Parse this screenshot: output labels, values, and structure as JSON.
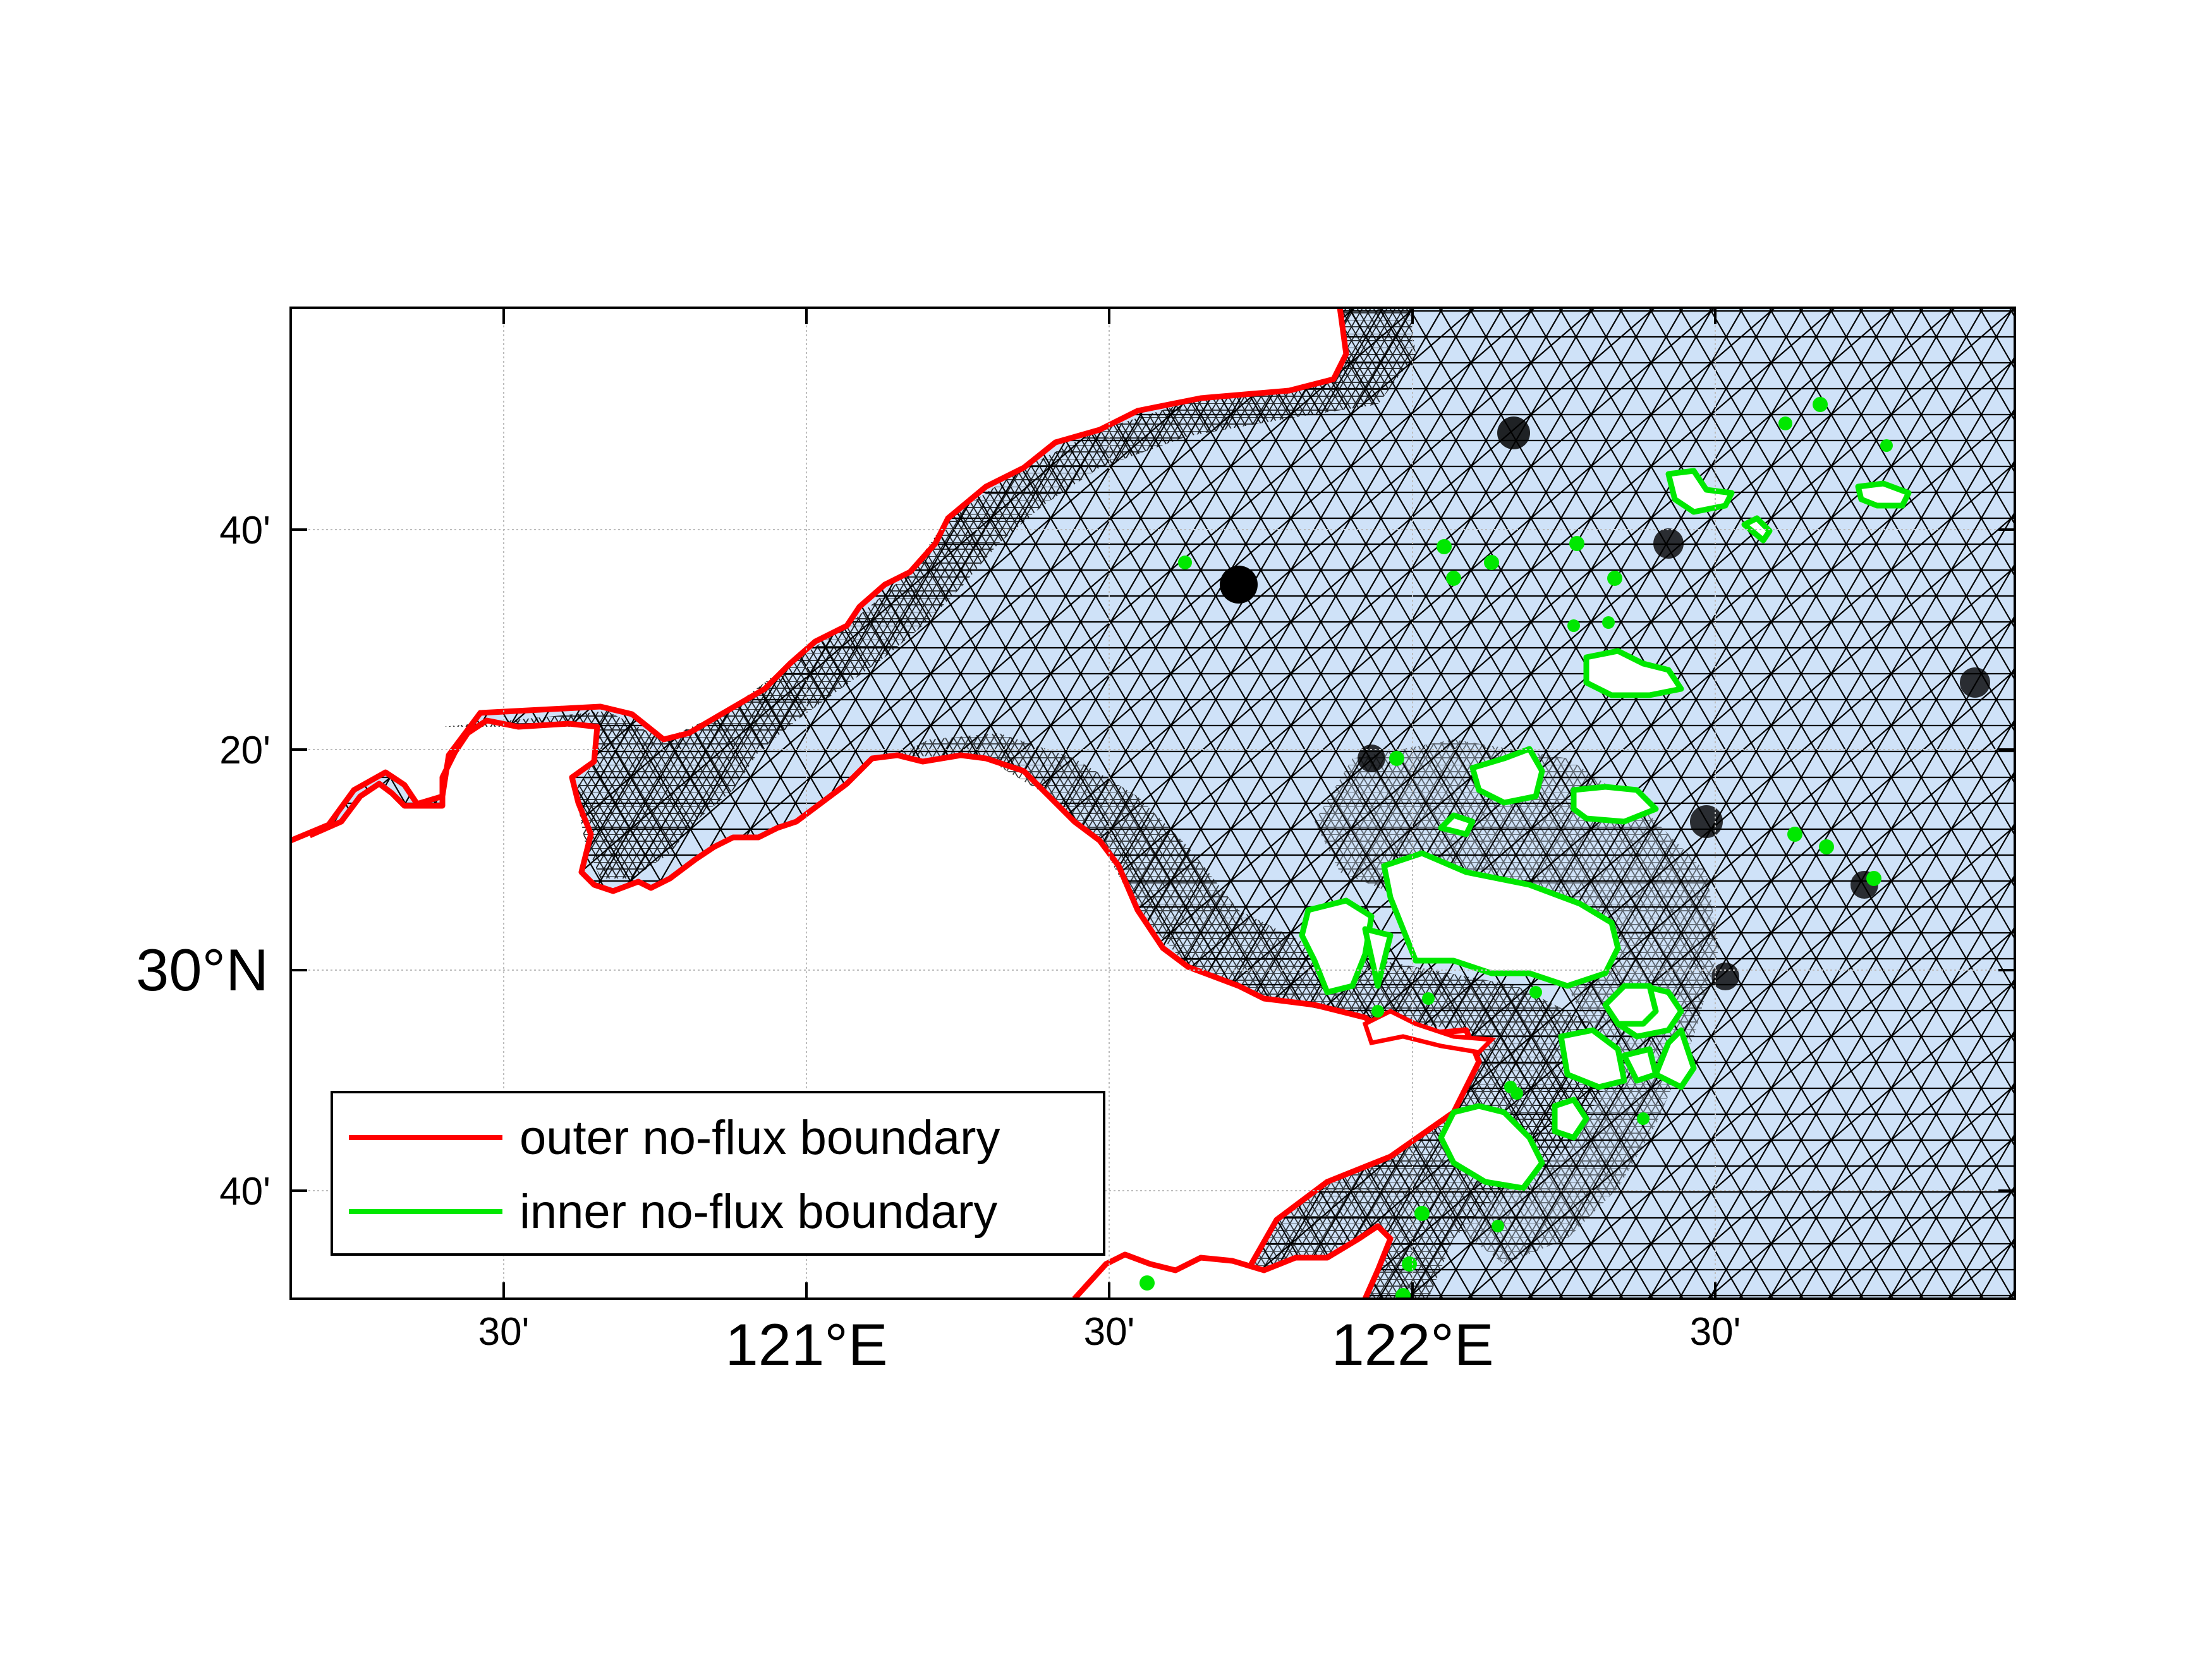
{
  "map": {
    "colors": {
      "water": "#cfe2f8",
      "mesh": "#000000",
      "outer_boundary": "#ff0000",
      "inner_boundary": "#00e800",
      "grid": "#bdbdbd",
      "land": "#ffffff"
    },
    "x_ticks": [
      {
        "label": "30'",
        "major": false
      },
      {
        "label": "121°E",
        "major": true
      },
      {
        "label": "30'",
        "major": false
      },
      {
        "label": "122°E",
        "major": true
      },
      {
        "label": "30'",
        "major": false
      }
    ],
    "y_ticks": [
      {
        "label": "40'",
        "major": false
      },
      {
        "label": "20'",
        "major": false
      },
      {
        "label": "30°N",
        "major": true
      },
      {
        "label": "40'",
        "major": false
      }
    ],
    "legend": {
      "placement": "bottom-left",
      "items": [
        {
          "label": "outer no-flux boundary",
          "color": "#ff0000"
        },
        {
          "label": "inner no-flux boundary",
          "color": "#00e800"
        }
      ]
    }
  }
}
